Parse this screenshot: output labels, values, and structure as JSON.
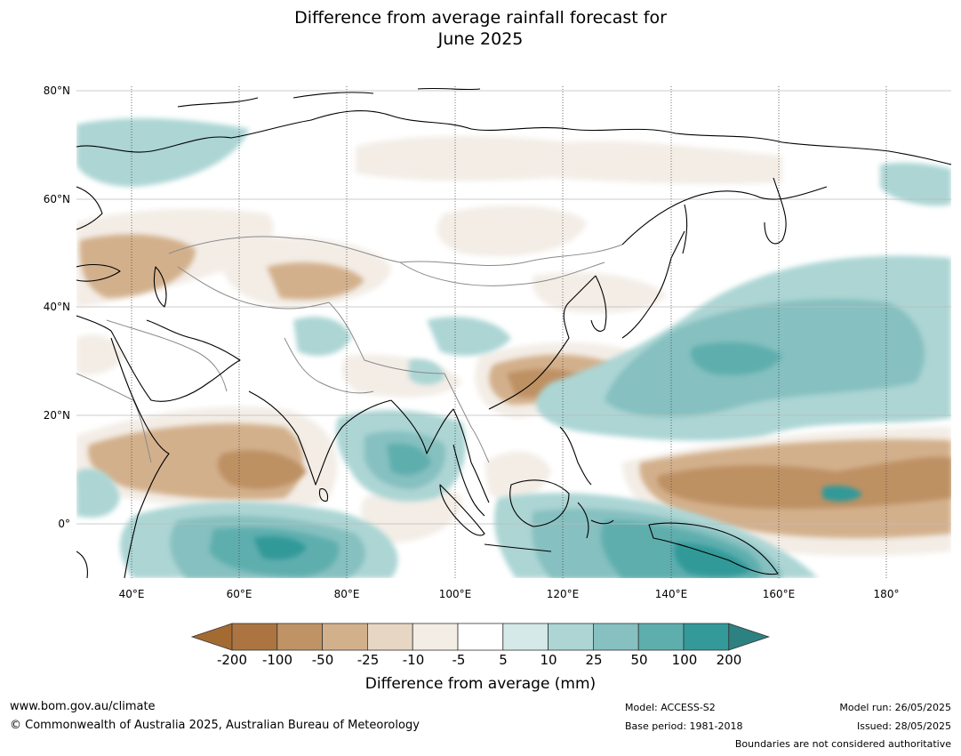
{
  "title": {
    "line1": "Difference from average rainfall forecast for",
    "line2": "June 2025"
  },
  "map": {
    "latitude_labels": [
      "80°N",
      "60°N",
      "40°N",
      "20°N",
      "0°"
    ],
    "longitude_labels": [
      "40°E",
      "60°E",
      "80°E",
      "100°E",
      "120°E",
      "140°E",
      "160°E",
      "180°"
    ],
    "colors": {
      "anomaly_-200": "#a0662a",
      "anomaly_-100": "#be9164",
      "anomaly_-50": "#d3b08c",
      "anomaly_-25": "#e7d6c4",
      "anomaly_-10": "#f3ede6",
      "anomaly_10": "#d4e9e8",
      "anomaly_25": "#acd5d4",
      "anomaly_50": "#86c0c0",
      "anomaly_100": "#5faeae",
      "anomaly_200": "#339999",
      "land_outline": "#000000",
      "border": "#8a8a8a",
      "gridline": "#bbbbbb"
    }
  },
  "legend": {
    "tick_labels": [
      "-200",
      "-100",
      "-50",
      "-25",
      "-10",
      "-5",
      "5",
      "10",
      "25",
      "50",
      "100",
      "200"
    ],
    "colors": [
      "#a36a32",
      "#ab7440",
      "#bf9366",
      "#d3b08c",
      "#e7d6c4",
      "#f3ede6",
      "#ffffff",
      "#d4e9e8",
      "#acd5d4",
      "#86c0c0",
      "#5faeae",
      "#339999",
      "#2e8181"
    ],
    "title": "Difference from average (mm)"
  },
  "footer": {
    "website": "www.bom.gov.au/climate",
    "copyright": "© Commonwealth of Australia 2025, Australian Bureau of Meteorology",
    "model": "Model: ACCESS-S2",
    "base_period": "Base period: 1981-2018",
    "model_run": "Model run: 26/05/2025",
    "issued": "Issued: 28/05/2025",
    "disclaimer": "Boundaries are not considered authoritative"
  }
}
